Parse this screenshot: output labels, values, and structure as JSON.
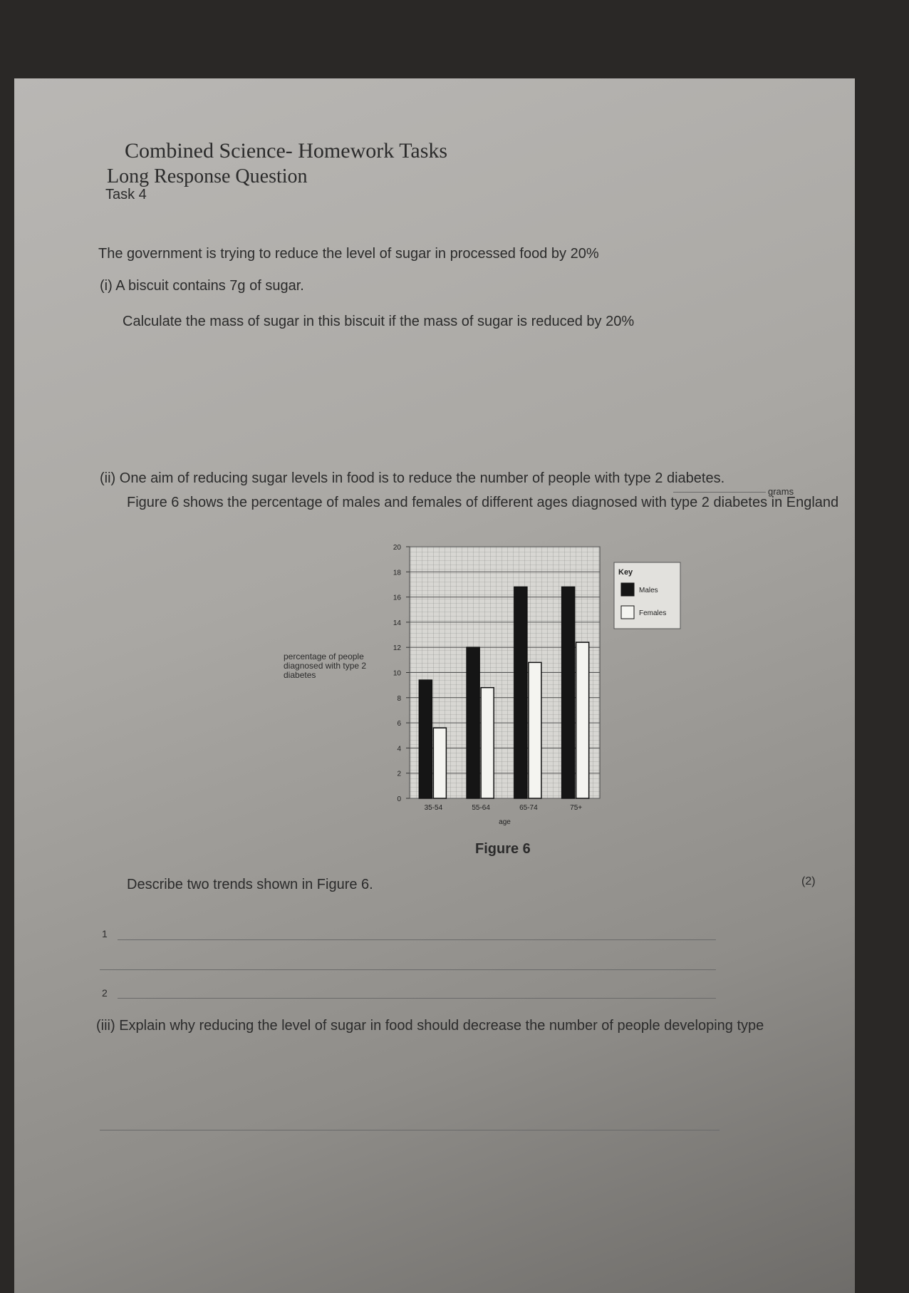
{
  "header": {
    "course": "Combined Science- Homework Tasks",
    "subtitle": "Long Response Question",
    "task": "Task 4"
  },
  "intro": "The government is trying to reduce the level of sugar in processed food by 20%",
  "part_i": {
    "label": "(i) A biscuit contains 7g of sugar.",
    "question": "Calculate the mass of sugar in this biscuit if the mass of sugar is reduced by 20%",
    "unit": "grams"
  },
  "part_ii": {
    "label": "(ii) One aim of reducing sugar levels in food is to reduce the number of people with type 2 diabetes.",
    "figure_text": "Figure 6 shows the percentage of males and females of different ages diagnosed with type 2 diabetes in England",
    "question": "Describe two trends shown in Figure 6.",
    "marks": "(2)",
    "answer_lines": [
      "1",
      "2"
    ]
  },
  "chart_data": {
    "type": "bar",
    "caption": "Figure 6",
    "y_label": "percentage of people diagnosed with type 2 diabetes",
    "x_label": "age",
    "categories": [
      "35-54",
      "55-64",
      "65-74",
      "75+"
    ],
    "legend_title": "Key",
    "series": [
      {
        "name": "Males",
        "color": "#151515",
        "values": [
          9.4,
          12,
          16.8,
          16.8
        ]
      },
      {
        "name": "Females",
        "color": "#f4f4f0",
        "values": [
          5.6,
          8.8,
          10.8,
          12.4
        ]
      }
    ],
    "ylim": [
      0,
      20
    ],
    "yticks": [
      0,
      2,
      4,
      6,
      8,
      10,
      12,
      14,
      16,
      18,
      20
    ],
    "grid": true,
    "legend": "right"
  },
  "part_iii": {
    "label": "(iii) Explain why reducing the level of sugar in food should decrease the number of people developing type"
  }
}
